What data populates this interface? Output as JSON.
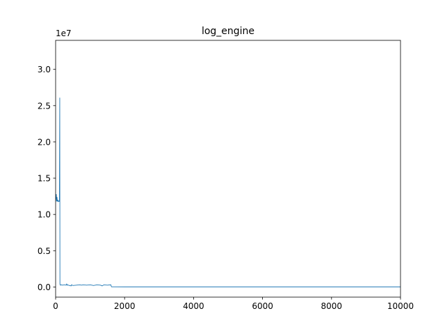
{
  "chart_data": {
    "type": "line",
    "title": "log_engine",
    "xlabel": "",
    "ylabel": "",
    "y_offset_label": "1e7",
    "xlim": [
      0,
      10000
    ],
    "ylim": [
      -1400000,
      34000000
    ],
    "x_ticks": [
      0,
      2000,
      4000,
      6000,
      8000,
      10000
    ],
    "x_tick_labels": [
      "0",
      "2000",
      "4000",
      "6000",
      "8000",
      "10000"
    ],
    "y_ticks": [
      0,
      5000000,
      10000000,
      15000000,
      20000000,
      25000000,
      30000000
    ],
    "y_tick_labels": [
      "0.0",
      "0.5",
      "1.0",
      "1.5",
      "2.0",
      "2.5",
      "3.0"
    ],
    "grid": false,
    "colors": {
      "line": "#1f77b4",
      "axes": "#000000"
    },
    "series": [
      {
        "x": [
          0,
          20,
          30,
          40,
          50,
          60,
          70,
          80,
          90,
          100,
          110,
          120,
          125,
          130,
          140,
          160,
          200,
          250,
          300,
          320,
          330,
          340,
          400,
          450,
          460,
          500,
          600,
          700,
          750,
          800,
          900,
          1000,
          1100,
          1200,
          1300,
          1350,
          1400,
          1500,
          1600,
          1620,
          2000,
          3000,
          4000,
          5000,
          6000,
          7000,
          8000,
          9000,
          10000
        ],
        "y": [
          11800000,
          12800000,
          11800000,
          12400000,
          11800000,
          12000000,
          11800000,
          11900000,
          11800000,
          11800000,
          11800000,
          26100000,
          400000,
          300000,
          250000,
          300000,
          250000,
          300000,
          250000,
          400000,
          250000,
          300000,
          200000,
          150000,
          300000,
          200000,
          250000,
          300000,
          250000,
          300000,
          250000,
          300000,
          200000,
          300000,
          250000,
          150000,
          300000,
          250000,
          300000,
          20000,
          15000,
          15000,
          15000,
          15000,
          15000,
          15000,
          15000,
          15000,
          15000
        ]
      }
    ]
  }
}
